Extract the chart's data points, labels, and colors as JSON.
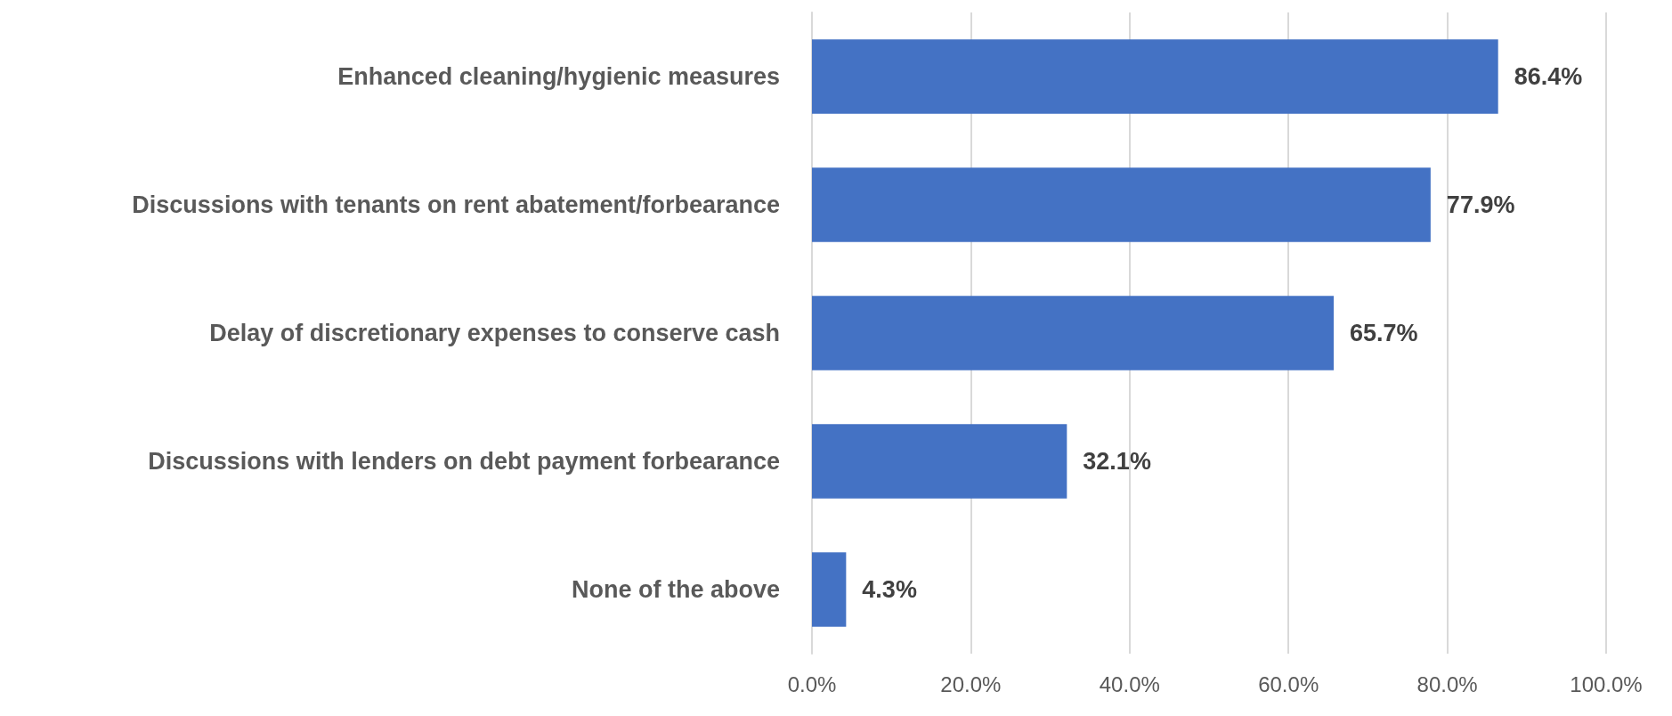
{
  "chart_data": {
    "type": "bar",
    "orientation": "horizontal",
    "categories": [
      "Enhanced cleaning/hygienic measures",
      "Discussions with tenants on rent abatement/forbearance",
      "Delay of discretionary expenses to conserve cash",
      "Discussions with lenders on debt payment forbearance",
      "None of the above"
    ],
    "values": [
      86.4,
      77.9,
      65.7,
      32.1,
      4.3
    ],
    "value_labels": [
      "86.4%",
      "77.9%",
      "65.7%",
      "32.1%",
      "4.3%"
    ],
    "color": "#4472c4",
    "xlim": [
      0,
      100
    ],
    "xticks": [
      {
        "value": 0,
        "label": "0.0%"
      },
      {
        "value": 20,
        "label": "20.0%"
      },
      {
        "value": 40,
        "label": "40.0%"
      },
      {
        "value": 60,
        "label": "60.0%"
      },
      {
        "value": 80,
        "label": "80.0%"
      },
      {
        "value": 100,
        "label": "100.0%"
      }
    ],
    "grid": "x"
  }
}
